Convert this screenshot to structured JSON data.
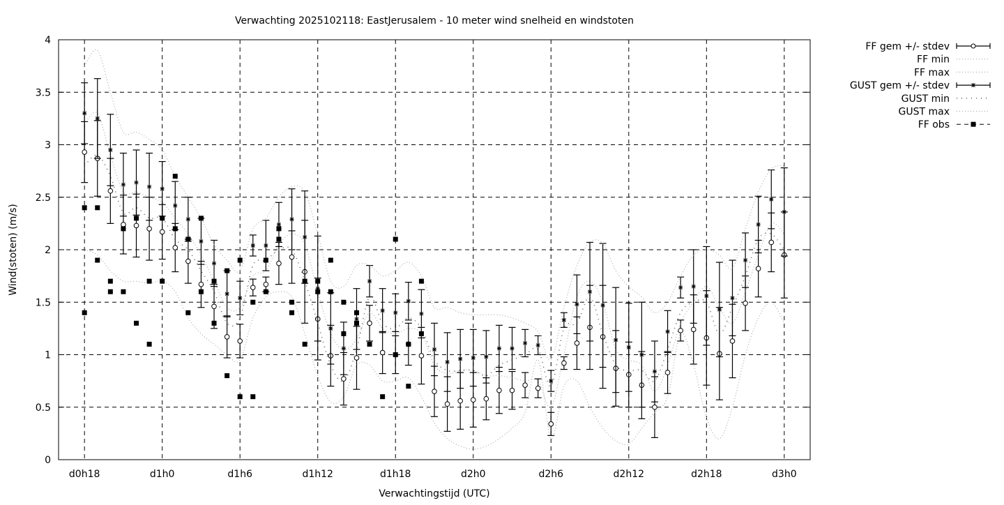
{
  "chart_data": {
    "type": "line",
    "title": "Verwachting 2025102118: EastJerusalem - 10 meter wind snelheid en windstoten",
    "xlabel": "Verwachtingstijd (UTC)",
    "ylabel": "Wind(stoten) (m/s)",
    "ylim": [
      0,
      4
    ],
    "yticks": [
      0,
      0.5,
      1,
      1.5,
      2,
      2.5,
      3,
      3.5,
      4
    ],
    "ytick_labels": [
      "0",
      "0.5",
      "1",
      "1.5",
      "2",
      "2.5",
      "3",
      "3.5",
      "4"
    ],
    "xlim_hours": [
      16,
      74
    ],
    "xticks_hours": [
      18,
      24,
      30,
      36,
      42,
      48,
      54,
      60,
      66,
      72
    ],
    "xtick_labels": [
      "d0h18",
      "d1h0",
      "d1h6",
      "d1h12",
      "d1h18",
      "d2h0",
      "d2h6",
      "d2h12",
      "d2h18",
      "d3h0"
    ],
    "grid": true,
    "legend_placement": "outside-right-top",
    "hours": [
      18,
      19,
      20,
      21,
      22,
      23,
      24,
      25,
      26,
      27,
      28,
      29,
      30,
      31,
      32,
      33,
      34,
      35,
      36,
      37,
      38,
      39,
      40,
      41,
      42,
      43,
      44,
      45,
      46,
      47,
      48,
      49,
      50,
      51,
      52,
      53,
      54,
      55,
      56,
      57,
      58,
      59,
      60,
      61,
      62,
      63,
      64,
      65,
      66,
      67,
      68,
      69,
      70,
      71,
      72
    ],
    "series": [
      {
        "name": "FF gem +/- stdev",
        "style": "errorbar-circle",
        "values": [
          2.93,
          2.87,
          2.56,
          2.24,
          2.23,
          2.2,
          2.17,
          2.02,
          1.89,
          1.67,
          1.46,
          1.17,
          1.13,
          1.64,
          1.67,
          1.87,
          1.93,
          1.79,
          1.34,
          0.99,
          0.77,
          0.97,
          1.3,
          1.02,
          1.0,
          1.1,
          0.99,
          0.65,
          0.53,
          0.56,
          0.57,
          0.58,
          0.66,
          0.66,
          0.71,
          0.68,
          0.34,
          0.92,
          1.11,
          1.26,
          1.17,
          0.87,
          0.81,
          0.71,
          0.5,
          0.83,
          1.23,
          1.24,
          1.16,
          1.01,
          1.13,
          1.49,
          1.82,
          2.07,
          1.95
        ],
        "stdev": [
          0.29,
          0.36,
          0.31,
          0.28,
          0.3,
          0.3,
          0.26,
          0.23,
          0.21,
          0.22,
          0.21,
          0.2,
          0.16,
          0.08,
          0.07,
          0.2,
          0.25,
          0.49,
          0.39,
          0.29,
          0.25,
          0.3,
          0.17,
          0.2,
          0.18,
          0.2,
          0.27,
          0.24,
          0.26,
          0.27,
          0.26,
          0.2,
          0.22,
          0.18,
          0.12,
          0.09,
          0.11,
          0.06,
          0.25,
          0.4,
          0.49,
          0.36,
          0.31,
          0.32,
          0.29,
          0.2,
          0.1,
          0.33,
          0.45,
          0.44,
          0.35,
          0.26,
          0.27,
          0.28,
          0.41
        ]
      },
      {
        "name": "FF min",
        "style": "dotted-light",
        "values": [
          2.0,
          1.95,
          1.8,
          1.7,
          1.7,
          1.68,
          1.7,
          1.6,
          1.35,
          1.2,
          1.1,
          1.0,
          0.95,
          1.35,
          1.55,
          1.6,
          1.55,
          1.2,
          0.8,
          0.55,
          0.6,
          0.9,
          0.9,
          0.75,
          0.75,
          0.78,
          0.6,
          0.35,
          0.2,
          0.13,
          0.1,
          0.13,
          0.2,
          0.3,
          0.45,
          0.95,
          0.2,
          0.7,
          0.75,
          0.5,
          0.3,
          0.18,
          0.15,
          0.3,
          0.45,
          0.6,
          1.2,
          0.9,
          0.4,
          0.2,
          0.5,
          1.0,
          1.35,
          1.5,
          1.3
        ]
      },
      {
        "name": "FF max",
        "style": "dotted-light",
        "values": [
          3.2,
          3.3,
          2.9,
          2.55,
          2.55,
          2.5,
          2.45,
          2.3,
          2.15,
          1.95,
          1.7,
          1.45,
          1.45,
          1.75,
          1.8,
          2.05,
          2.15,
          2.05,
          1.6,
          1.2,
          1.05,
          1.15,
          1.4,
          1.25,
          1.2,
          1.25,
          1.2,
          0.9,
          0.82,
          0.85,
          0.85,
          0.8,
          0.8,
          0.78,
          0.75,
          0.75,
          0.5,
          1.0,
          1.55,
          1.7,
          1.5,
          1.05,
          0.95,
          0.9,
          0.65,
          0.9,
          1.3,
          1.5,
          1.65,
          1.45,
          1.3,
          1.6,
          1.95,
          2.25,
          2.15
        ]
      },
      {
        "name": "GUST gem +/- stdev",
        "style": "errorbar-star",
        "values": [
          3.3,
          3.25,
          2.95,
          2.62,
          2.64,
          2.6,
          2.58,
          2.42,
          2.29,
          2.08,
          1.87,
          1.58,
          1.54,
          2.04,
          2.04,
          2.24,
          2.29,
          2.12,
          1.63,
          1.25,
          1.06,
          1.34,
          1.7,
          1.42,
          1.4,
          1.51,
          1.39,
          1.05,
          0.93,
          0.96,
          0.97,
          0.98,
          1.06,
          1.06,
          1.11,
          1.09,
          0.75,
          1.33,
          1.48,
          1.6,
          1.47,
          1.14,
          1.07,
          1.0,
          0.84,
          1.22,
          1.64,
          1.65,
          1.56,
          1.43,
          1.54,
          1.9,
          2.24,
          2.48,
          2.36
        ],
        "stdev": [
          0.29,
          0.38,
          0.34,
          0.3,
          0.31,
          0.32,
          0.26,
          0.23,
          0.21,
          0.22,
          0.22,
          0.22,
          0.16,
          0.1,
          0.24,
          0.21,
          0.29,
          0.44,
          0.5,
          0.34,
          0.25,
          0.29,
          0.15,
          0.21,
          0.18,
          0.18,
          0.23,
          0.25,
          0.28,
          0.28,
          0.27,
          0.25,
          0.22,
          0.2,
          0.13,
          0.09,
          0.1,
          0.07,
          0.28,
          0.47,
          0.59,
          0.5,
          0.42,
          0.5,
          0.29,
          0.2,
          0.1,
          0.35,
          0.47,
          0.45,
          0.36,
          0.26,
          0.27,
          0.28,
          0.42
        ]
      },
      {
        "name": "GUST min",
        "style": "dotted-dark",
        "values": [
          2.8,
          2.9,
          2.7,
          2.35,
          2.4,
          2.3,
          2.3,
          2.1,
          2.0,
          1.8,
          1.6,
          1.3,
          1.35,
          1.85,
          1.9,
          2.0,
          2.0,
          1.7,
          1.3,
          0.9,
          0.75,
          1.05,
          1.55,
          1.3,
          1.25,
          1.35,
          1.25,
          0.95,
          0.85,
          0.85,
          0.85,
          0.8,
          0.9,
          0.95,
          1.0,
          1.05,
          0.7,
          1.25,
          1.3,
          1.55,
          1.2,
          0.9,
          0.85,
          0.85,
          0.75,
          1.05,
          1.4,
          1.5,
          1.5,
          1.2,
          1.45,
          1.75,
          2.1,
          2.15,
          2.0
        ]
      },
      {
        "name": "GUST max",
        "style": "dotted-light",
        "values": [
          3.75,
          3.9,
          3.5,
          3.12,
          3.12,
          3.05,
          2.95,
          2.7,
          2.5,
          2.3,
          2.05,
          1.9,
          1.8,
          2.2,
          2.3,
          2.5,
          2.6,
          2.55,
          2.15,
          1.7,
          1.65,
          1.85,
          1.85,
          1.75,
          1.8,
          1.88,
          1.75,
          1.45,
          1.45,
          1.4,
          1.38,
          1.38,
          1.38,
          1.35,
          1.3,
          1.22,
          0.95,
          1.45,
          1.85,
          2.07,
          2.06,
          1.8,
          1.65,
          1.55,
          1.4,
          1.5,
          1.75,
          1.95,
          2.0,
          1.95,
          1.82,
          2.2,
          2.55,
          2.77,
          2.8
        ]
      },
      {
        "name": "FF obs",
        "style": "square",
        "points": [
          [
            18,
            2.4
          ],
          [
            18,
            1.4
          ],
          [
            19,
            2.4
          ],
          [
            19,
            1.9
          ],
          [
            20,
            1.7
          ],
          [
            20,
            1.6
          ],
          [
            21,
            2.2
          ],
          [
            21,
            1.6
          ],
          [
            22,
            2.3
          ],
          [
            22,
            1.3
          ],
          [
            23,
            1.7
          ],
          [
            23,
            1.1
          ],
          [
            24,
            2.3
          ],
          [
            24,
            1.7
          ],
          [
            25,
            2.7
          ],
          [
            25,
            2.2
          ],
          [
            26,
            2.1
          ],
          [
            26,
            1.4
          ],
          [
            27,
            2.3
          ],
          [
            27,
            1.6
          ],
          [
            28,
            1.7
          ],
          [
            28,
            1.3
          ],
          [
            29,
            1.8
          ],
          [
            29,
            0.8
          ],
          [
            30,
            1.9
          ],
          [
            30,
            0.6
          ],
          [
            31,
            1.5
          ],
          [
            31,
            0.6
          ],
          [
            32,
            1.9
          ],
          [
            32,
            1.6
          ],
          [
            33,
            2.2
          ],
          [
            33,
            2.1
          ],
          [
            34,
            1.5
          ],
          [
            34,
            1.4
          ],
          [
            35,
            1.7
          ],
          [
            35,
            1.1
          ],
          [
            36,
            1.7
          ],
          [
            36,
            1.6
          ],
          [
            37,
            1.9
          ],
          [
            37,
            1.6
          ],
          [
            38,
            1.5
          ],
          [
            38,
            1.2
          ],
          [
            39,
            1.4
          ],
          [
            39,
            1.3
          ],
          [
            40,
            1.1
          ],
          [
            41,
            0.6
          ],
          [
            42,
            2.1
          ],
          [
            42,
            1.0
          ],
          [
            43,
            1.1
          ],
          [
            43,
            0.7
          ],
          [
            44,
            1.7
          ],
          [
            44,
            1.2
          ]
        ]
      }
    ]
  }
}
